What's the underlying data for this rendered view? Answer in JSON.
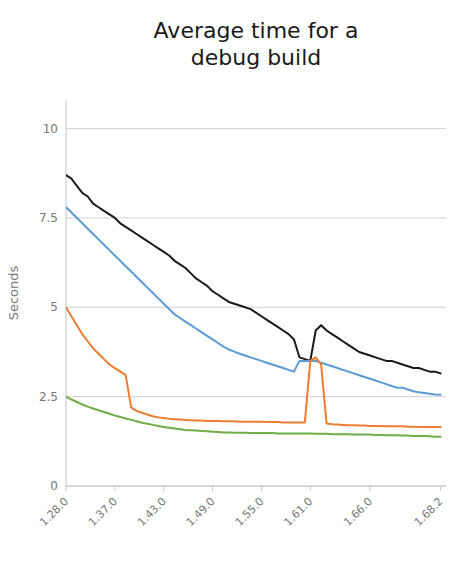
{
  "chart_data": {
    "type": "line",
    "title": "Average time for a\ndebug build",
    "y_label": "Seconds",
    "x": [
      0,
      1,
      2,
      3,
      4,
      5,
      6,
      7,
      8,
      9,
      10,
      11,
      12,
      13,
      14,
      15,
      16,
      17,
      18,
      19,
      20,
      21,
      22,
      23,
      24,
      25,
      26,
      27,
      28,
      29,
      30,
      31,
      32,
      33,
      34,
      35,
      36,
      37,
      38,
      39,
      40,
      41,
      42,
      43,
      44,
      45,
      46,
      47,
      48,
      49,
      50,
      51,
      52,
      53,
      54,
      55,
      56,
      57,
      58,
      59,
      60,
      61,
      62,
      63,
      64,
      65,
      66,
      67,
      68,
      69
    ],
    "xlim": [
      0,
      70
    ],
    "xticks": [
      {
        "value": 0,
        "label": "1.28.0"
      },
      {
        "value": 9,
        "label": "1.37.0"
      },
      {
        "value": 18,
        "label": "1.43.0"
      },
      {
        "value": 27,
        "label": "1.49.0"
      },
      {
        "value": 36,
        "label": "1.55.0"
      },
      {
        "value": 45,
        "label": "1.61.0"
      },
      {
        "value": 56,
        "label": "1.66.0"
      },
      {
        "value": 69,
        "label": "1.68.2"
      }
    ],
    "ylim": [
      0,
      10.8
    ],
    "yticks": [
      0,
      2.5,
      5,
      7.5,
      10
    ],
    "grid": true,
    "series": [
      {
        "color": "#1a1a1a",
        "values": [
          8.7,
          8.6,
          8.4,
          8.2,
          8.1,
          7.9,
          7.8,
          7.7,
          7.6,
          7.5,
          7.35,
          7.25,
          7.15,
          7.05,
          6.95,
          6.85,
          6.75,
          6.65,
          6.55,
          6.45,
          6.3,
          6.2,
          6.1,
          5.95,
          5.8,
          5.7,
          5.6,
          5.45,
          5.35,
          5.25,
          5.15,
          5.1,
          5.05,
          5.0,
          4.95,
          4.85,
          4.75,
          4.65,
          4.55,
          4.45,
          4.35,
          4.25,
          4.1,
          3.6,
          3.55,
          3.5,
          4.35,
          4.5,
          4.35,
          4.25,
          4.15,
          4.05,
          3.95,
          3.85,
          3.75,
          3.7,
          3.65,
          3.6,
          3.55,
          3.5,
          3.5,
          3.45,
          3.4,
          3.35,
          3.3,
          3.3,
          3.25,
          3.2,
          3.2,
          3.15
        ]
      },
      {
        "color": "#5b9bd5",
        "values": [
          7.8,
          7.65,
          7.5,
          7.35,
          7.2,
          7.05,
          6.9,
          6.75,
          6.6,
          6.45,
          6.3,
          6.15,
          6.0,
          5.85,
          5.7,
          5.55,
          5.4,
          5.25,
          5.1,
          4.95,
          4.8,
          4.7,
          4.6,
          4.5,
          4.4,
          4.3,
          4.2,
          4.1,
          4.0,
          3.9,
          3.82,
          3.76,
          3.7,
          3.65,
          3.6,
          3.55,
          3.5,
          3.45,
          3.4,
          3.35,
          3.3,
          3.25,
          3.2,
          3.5,
          3.5,
          3.5,
          3.5,
          3.45,
          3.4,
          3.35,
          3.3,
          3.25,
          3.2,
          3.15,
          3.1,
          3.05,
          3.0,
          2.95,
          2.9,
          2.85,
          2.8,
          2.75,
          2.75,
          2.7,
          2.65,
          2.62,
          2.6,
          2.58,
          2.56,
          2.55
        ]
      },
      {
        "color": "#ed7d31",
        "values": [
          5.0,
          4.75,
          4.5,
          4.25,
          4.05,
          3.85,
          3.7,
          3.55,
          3.4,
          3.3,
          3.2,
          3.1,
          2.2,
          2.1,
          2.05,
          2.0,
          1.95,
          1.92,
          1.9,
          1.88,
          1.87,
          1.86,
          1.85,
          1.84,
          1.83,
          1.83,
          1.82,
          1.82,
          1.82,
          1.81,
          1.81,
          1.81,
          1.8,
          1.8,
          1.8,
          1.8,
          1.8,
          1.79,
          1.79,
          1.79,
          1.78,
          1.78,
          1.78,
          1.78,
          1.78,
          3.5,
          3.6,
          3.4,
          1.75,
          1.73,
          1.72,
          1.71,
          1.7,
          1.7,
          1.69,
          1.69,
          1.68,
          1.68,
          1.68,
          1.67,
          1.67,
          1.67,
          1.67,
          1.66,
          1.66,
          1.65,
          1.65,
          1.65,
          1.65,
          1.65
        ]
      },
      {
        "color": "#70ad47",
        "values": [
          2.5,
          2.42,
          2.35,
          2.28,
          2.22,
          2.17,
          2.12,
          2.07,
          2.02,
          1.97,
          1.93,
          1.89,
          1.85,
          1.81,
          1.77,
          1.74,
          1.71,
          1.68,
          1.65,
          1.63,
          1.61,
          1.59,
          1.57,
          1.56,
          1.55,
          1.54,
          1.53,
          1.52,
          1.51,
          1.5,
          1.5,
          1.49,
          1.49,
          1.49,
          1.48,
          1.48,
          1.48,
          1.48,
          1.48,
          1.47,
          1.47,
          1.47,
          1.47,
          1.47,
          1.47,
          1.47,
          1.46,
          1.46,
          1.46,
          1.45,
          1.45,
          1.45,
          1.45,
          1.44,
          1.44,
          1.44,
          1.44,
          1.43,
          1.43,
          1.42,
          1.42,
          1.42,
          1.41,
          1.41,
          1.4,
          1.4,
          1.4,
          1.39,
          1.38,
          1.38
        ]
      }
    ]
  }
}
